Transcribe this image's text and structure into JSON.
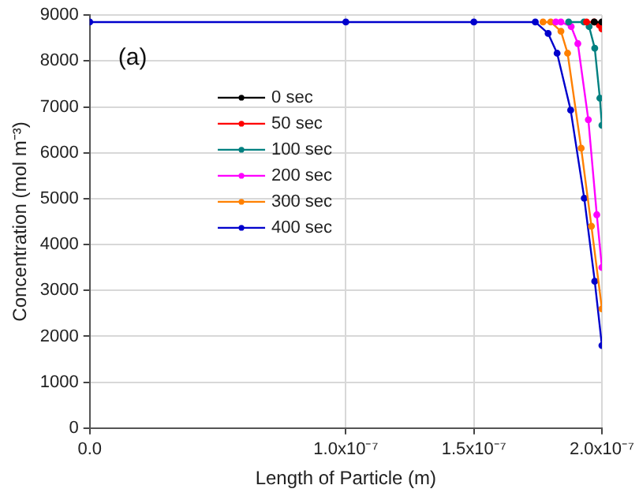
{
  "chart_data": {
    "type": "line",
    "xlabel": "Length of Particle (m)",
    "ylabel": "Concentration (mol m⁻³)",
    "annotations": [
      "(a)"
    ],
    "xlim": [
      0,
      2e-07
    ],
    "xticks": [
      {
        "value": 0,
        "label": "0.0"
      },
      {
        "value": 1e-07,
        "label": "1.0x10⁻⁷"
      },
      {
        "value": 1.5e-07,
        "label": "1.5x10⁻⁷"
      },
      {
        "value": 2e-07,
        "label": "2.0x10⁻⁷"
      }
    ],
    "ylim": [
      0,
      9000
    ],
    "yticks": [
      0,
      1000,
      2000,
      3000,
      4000,
      5000,
      6000,
      7000,
      8000,
      9000
    ],
    "grid": true,
    "legend": "top left",
    "marker": "circle",
    "line_style": "solid",
    "series": [
      {
        "name": "0 sec",
        "color": "#000000",
        "x": [
          1.97e-07,
          2e-07
        ],
        "values": [
          8850,
          8850
        ]
      },
      {
        "name": "50 sec",
        "color": "#ff0000",
        "x": [
          1.94e-07,
          1.97e-07,
          1.99e-07,
          2e-07
        ],
        "values": [
          8850,
          8850,
          8780,
          8700
        ]
      },
      {
        "name": "100 sec",
        "color": "#008080",
        "x": [
          1.87e-07,
          1.93e-07,
          1.95e-07,
          1.972e-07,
          1.992e-07,
          2e-07
        ],
        "values": [
          8850,
          8850,
          8750,
          8280,
          7190,
          6600
        ]
      },
      {
        "name": "200 sec",
        "color": "#ff00ff",
        "x": [
          1.82e-07,
          1.84e-07,
          1.88e-07,
          1.906e-07,
          1.947e-07,
          1.98e-07,
          2e-07
        ],
        "values": [
          8850,
          8850,
          8750,
          8380,
          6720,
          4650,
          3500
        ]
      },
      {
        "name": "300 sec",
        "color": "#ff8000",
        "x": [
          1.77e-07,
          1.8e-07,
          1.84e-07,
          1.866e-07,
          1.919e-07,
          1.959e-07,
          2e-07
        ],
        "values": [
          8850,
          8850,
          8650,
          8170,
          6100,
          4400,
          2600
        ]
      },
      {
        "name": "400 sec",
        "color": "#0000cc",
        "x": [
          0,
          1e-07,
          1.5e-07,
          1.74e-07,
          1.79e-07,
          1.825e-07,
          1.878e-07,
          1.931e-07,
          1.972e-07,
          2e-07
        ],
        "values": [
          8850,
          8850,
          8850,
          8850,
          8600,
          8170,
          6930,
          5010,
          3200,
          1800
        ]
      }
    ]
  }
}
